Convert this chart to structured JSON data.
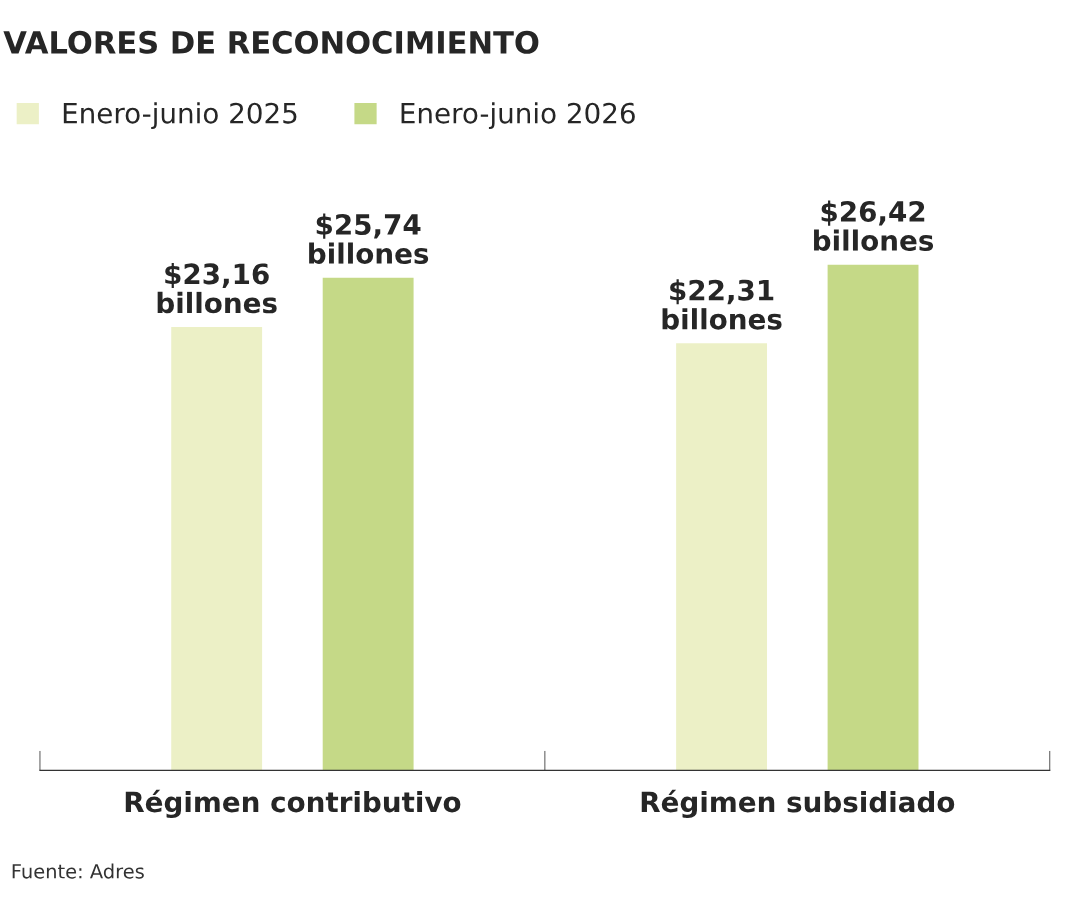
{
  "chart_data": {
    "type": "bar",
    "title": "VALORES DE RECONOCIMIENTO",
    "categories": [
      "Régimen contributivo",
      "Régimen subsidiado"
    ],
    "series": [
      {
        "name": "Enero-junio 2025",
        "color": "#ecf0c6",
        "values": [
          23.16,
          22.31
        ],
        "value_labels": [
          "$23,16\nbillones",
          "$22,31\nbillones"
        ]
      },
      {
        "name": "Enero-junio 2026",
        "color": "#c5d987",
        "values": [
          25.74,
          26.42
        ],
        "value_labels": [
          "$25,74\nbillones",
          "$26,42\nbillones"
        ]
      }
    ],
    "tick_labels": "x",
    "grid": false,
    "legend": "top left",
    "annotations": [
      "Fuente: Adres"
    ]
  }
}
